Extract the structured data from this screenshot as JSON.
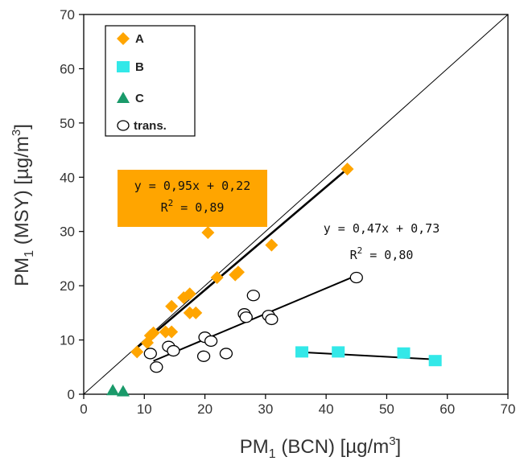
{
  "chart_data": {
    "type": "scatter",
    "xlabel": {
      "pre": "PM",
      "sub": "1",
      "mid": " (BCN) [µg/m",
      "sup": "3",
      "post": "]"
    },
    "ylabel": {
      "pre": "PM",
      "sub": "1",
      "mid": " (MSY) [µg/m",
      "sup": "3",
      "post": "]"
    },
    "xlim": [
      0,
      70
    ],
    "ylim": [
      0,
      70
    ],
    "xticks": [
      0,
      10,
      20,
      30,
      40,
      50,
      60,
      70
    ],
    "yticks": [
      0,
      10,
      20,
      30,
      40,
      50,
      60,
      70
    ],
    "grid": false,
    "legend_position": "top-left",
    "reference_line": "1:1",
    "series": [
      {
        "name": "A",
        "marker": "diamond",
        "color": "#FFA500",
        "points": [
          [
            8.8,
            7.8
          ],
          [
            10.5,
            9.5
          ],
          [
            11,
            10.8
          ],
          [
            11.5,
            11.3
          ],
          [
            13.5,
            11.5
          ],
          [
            14.5,
            11.5
          ],
          [
            14.5,
            16.2
          ],
          [
            16.5,
            17.8
          ],
          [
            17.5,
            18.5
          ],
          [
            17.5,
            15
          ],
          [
            18.5,
            15
          ],
          [
            20.5,
            29.8
          ],
          [
            22,
            21.5
          ],
          [
            25,
            22
          ],
          [
            25.5,
            22.5
          ],
          [
            31,
            27.5
          ],
          [
            43.5,
            41.5
          ]
        ]
      },
      {
        "name": "B",
        "marker": "square",
        "color": "#33E8E8",
        "points": [
          [
            36,
            7.8
          ],
          [
            42,
            7.8
          ],
          [
            52.8,
            7.6
          ],
          [
            58,
            6.2
          ]
        ]
      },
      {
        "name": "C",
        "marker": "triangle",
        "color": "#1A9A6A",
        "points": [
          [
            4.8,
            0.7
          ],
          [
            6.5,
            0.5
          ]
        ]
      },
      {
        "name": "trans.",
        "marker": "circle-open",
        "color": "#000000",
        "points": [
          [
            11,
            7.5
          ],
          [
            12,
            5
          ],
          [
            14,
            8.8
          ],
          [
            14.8,
            8
          ],
          [
            20,
            10.5
          ],
          [
            19.8,
            7
          ],
          [
            21,
            9.8
          ],
          [
            23.5,
            7.5
          ],
          [
            26.5,
            14.8
          ],
          [
            26.8,
            14.2
          ],
          [
            28,
            18.2
          ],
          [
            30.5,
            14.5
          ],
          [
            31,
            13.8
          ],
          [
            45,
            21.5
          ]
        ]
      }
    ],
    "fits": [
      {
        "series": "A",
        "slope": 0.95,
        "intercept": 0.22,
        "x_range": [
          8.5,
          43.5
        ],
        "color": "#000000",
        "width": 2.6
      },
      {
        "series": "trans.",
        "slope": 0.47,
        "intercept": 0.73,
        "x_range": [
          11.5,
          45
        ],
        "color": "#000000",
        "width": 2
      },
      {
        "series": "B",
        "slope": -0.06,
        "intercept": 9.9,
        "x_range": [
          36,
          58
        ],
        "color": "#000000",
        "width": 2
      }
    ],
    "annotations": [
      {
        "id": "fit-a",
        "line1": "y = 0,95x + 0,22",
        "r2_label": "R",
        "r2_sup": "2",
        "r2_value": " = 0,89",
        "box_color": "#FFA500"
      },
      {
        "id": "fit-trans",
        "line1": "y = 0,47x + 0,73",
        "r2_label": "R",
        "r2_sup": "2",
        "r2_value": " = 0,80"
      }
    ]
  }
}
